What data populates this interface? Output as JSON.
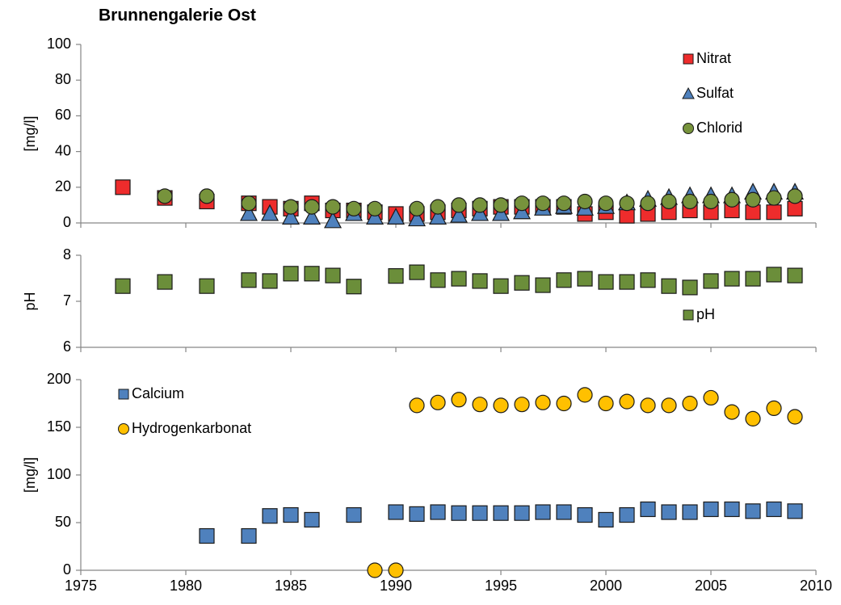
{
  "chart_data": [
    {
      "type": "scatter",
      "title": "Brunnengalerie Ost",
      "y_label": "[mg/l]",
      "xlim": [
        1975,
        2010
      ],
      "ylim": [
        0,
        100
      ],
      "yticks": [
        0,
        20,
        40,
        60,
        80,
        100
      ],
      "legend": "upper right",
      "series": [
        {
          "name": "Nitrat",
          "color": "#ee2c2c",
          "marker": "square",
          "x": [
            1977,
            1979,
            1981,
            1983,
            1984,
            1985,
            1986,
            1987,
            1988,
            1989,
            1990,
            1991,
            1992,
            1993,
            1994,
            1995,
            1996,
            1997,
            1998,
            1999,
            2000,
            2001,
            2002,
            2003,
            2004,
            2005,
            2006,
            2007,
            2008,
            2009
          ],
          "values": [
            20,
            14,
            12,
            11,
            9,
            8,
            11,
            7,
            7,
            6,
            5,
            5,
            6,
            7,
            8,
            9,
            9,
            9,
            9,
            5,
            6,
            4,
            5,
            6,
            7,
            6,
            7,
            6,
            6,
            8
          ]
        },
        {
          "name": "Sulfat",
          "color": "#4f81bd",
          "marker": "triangle",
          "x": [
            1983,
            1984,
            1985,
            1986,
            1987,
            1988,
            1989,
            1990,
            1991,
            1992,
            1993,
            1994,
            1995,
            1996,
            1997,
            1998,
            1999,
            2000,
            2001,
            2002,
            2003,
            2004,
            2005,
            2006,
            2007,
            2008,
            2009
          ],
          "values": [
            5,
            5,
            3,
            3,
            1,
            5,
            3,
            3,
            2,
            3,
            4,
            5,
            5,
            6,
            8,
            9,
            8,
            9,
            11,
            13,
            14,
            15,
            15,
            15,
            17,
            17,
            17
          ]
        },
        {
          "name": "Chlorid",
          "color": "#77933c",
          "marker": "circle",
          "x": [
            1979,
            1981,
            1983,
            1985,
            1986,
            1987,
            1988,
            1989,
            1991,
            1992,
            1993,
            1994,
            1995,
            1996,
            1997,
            1998,
            1999,
            2000,
            2001,
            2002,
            2003,
            2004,
            2005,
            2006,
            2007,
            2008,
            2009
          ],
          "values": [
            15,
            15,
            11,
            9,
            9,
            9,
            8,
            8,
            8,
            9,
            10,
            10,
            10,
            11,
            11,
            11,
            12,
            11,
            11,
            11,
            12,
            12,
            12,
            13,
            13,
            14,
            15
          ]
        }
      ]
    },
    {
      "type": "scatter",
      "y_label": "pH",
      "xlim": [
        1975,
        2010
      ],
      "ylim": [
        6,
        8
      ],
      "yticks": [
        6,
        7,
        8
      ],
      "legend": "lower right",
      "series": [
        {
          "name": "pH",
          "color": "#6b8e3a",
          "marker": "square",
          "x": [
            1977,
            1979,
            1981,
            1983,
            1984,
            1985,
            1986,
            1987,
            1988,
            1990,
            1991,
            1992,
            1993,
            1994,
            1995,
            1996,
            1997,
            1998,
            1999,
            2000,
            2001,
            2002,
            2003,
            2004,
            2005,
            2006,
            2007,
            2008,
            2009
          ],
          "values": [
            7.33,
            7.42,
            7.33,
            7.46,
            7.44,
            7.6,
            7.6,
            7.56,
            7.32,
            7.55,
            7.63,
            7.46,
            7.49,
            7.44,
            7.33,
            7.4,
            7.35,
            7.46,
            7.49,
            7.42,
            7.42,
            7.46,
            7.33,
            7.3,
            7.44,
            7.49,
            7.49,
            7.58,
            7.56
          ]
        }
      ]
    },
    {
      "type": "scatter",
      "y_label": "[mg/l]",
      "xlim": [
        1975,
        2010
      ],
      "xticks": [
        1975,
        1980,
        1985,
        1990,
        1995,
        2000,
        2005,
        2010
      ],
      "ylim": [
        0,
        200
      ],
      "yticks": [
        0,
        50,
        100,
        150,
        200
      ],
      "legend": "upper left",
      "series": [
        {
          "name": "Calcium",
          "color": "#4f81bd",
          "marker": "square",
          "x": [
            1981,
            1983,
            1984,
            1985,
            1986,
            1988,
            1990,
            1991,
            1992,
            1993,
            1994,
            1995,
            1996,
            1997,
            1998,
            1999,
            2000,
            2001,
            2002,
            2003,
            2004,
            2005,
            2006,
            2007,
            2008,
            2009
          ],
          "values": [
            36,
            36,
            57,
            58,
            53,
            58,
            61,
            59,
            61,
            60,
            60,
            60,
            60,
            61,
            61,
            58,
            53,
            58,
            64,
            61,
            61,
            64,
            64,
            62,
            64,
            62
          ]
        },
        {
          "name": "Hydrogenkarbonat",
          "color": "#ffc000",
          "marker": "circle",
          "x": [
            1989,
            1990,
            1991,
            1992,
            1993,
            1994,
            1995,
            1996,
            1997,
            1998,
            1999,
            2000,
            2001,
            2002,
            2003,
            2004,
            2005,
            2006,
            2007,
            2008,
            2009
          ],
          "values": [
            0,
            0,
            173,
            176,
            179,
            174,
            173,
            174,
            176,
            175,
            184,
            175,
            177,
            173,
            173,
            175,
            181,
            166,
            159,
            170,
            161
          ]
        }
      ]
    }
  ]
}
